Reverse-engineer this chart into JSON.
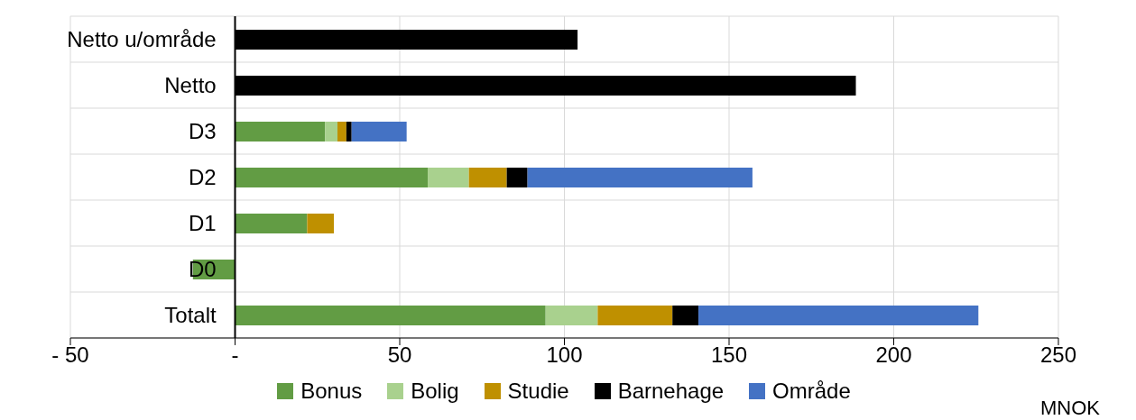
{
  "chart_data": {
    "type": "bar",
    "orientation": "horizontal",
    "stacked": true,
    "xlabel": "MNOK",
    "categories": [
      "Netto u/område",
      "Netto",
      "D3",
      "D2",
      "D1",
      "D0",
      "Totalt"
    ],
    "series": [
      {
        "name": "Bonus",
        "color": "#629c44",
        "values": [
          null,
          null,
          27.3,
          58.5,
          21.9,
          -12.8,
          94.3
        ]
      },
      {
        "name": "Bolig",
        "color": "#a9d18e",
        "values": [
          null,
          null,
          3.8,
          12.5,
          null,
          null,
          15.8
        ]
      },
      {
        "name": "Studie",
        "color": "#bf9000",
        "values": [
          null,
          null,
          2.7,
          11.5,
          8.1,
          null,
          22.7
        ]
      },
      {
        "name": "Barnehage",
        "color": "#000000",
        "values": [
          104,
          188.5,
          1.6,
          6.3,
          null,
          null,
          7.9
        ]
      },
      {
        "name": "Område",
        "color": "#4472c4",
        "values": [
          null,
          null,
          16.7,
          68.3,
          null,
          null,
          85
        ]
      }
    ],
    "xlim": [
      -50,
      250
    ],
    "xticks": [
      {
        "value": -50,
        "label": "- 50"
      },
      {
        "value": 0,
        "label": "-"
      },
      50,
      100,
      150,
      200,
      250
    ],
    "grid": true,
    "legend": "bottom"
  }
}
